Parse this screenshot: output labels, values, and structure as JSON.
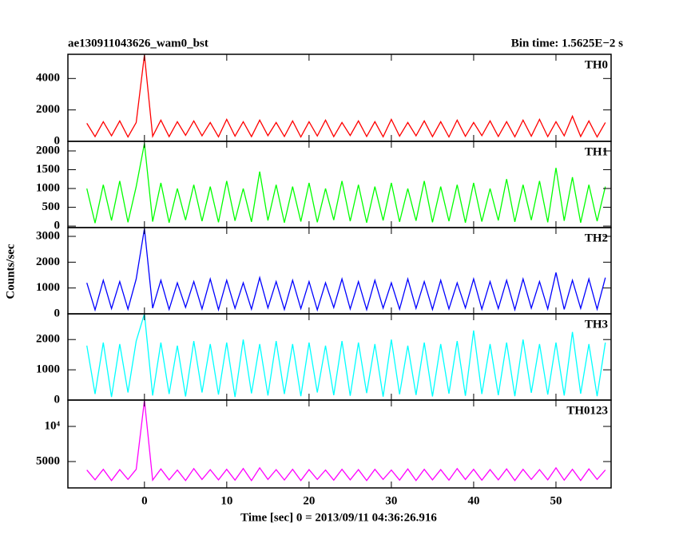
{
  "chart_data": {
    "type": "line",
    "title": "ae130911043626_wam0_bst",
    "subtitle": "Bin time: 1.5625E−2 s",
    "xlabel": "Time [sec] 0 = 2013/09/11 04:36:26.916",
    "ylabel": "Counts/sec",
    "xlim": [
      -9.3,
      56.7
    ],
    "xticks": [
      0,
      10,
      20,
      30,
      40,
      50
    ],
    "x": [
      -7,
      -6,
      -5,
      -4,
      -3,
      -2,
      -1,
      0,
      1,
      2,
      3,
      4,
      5,
      6,
      7,
      8,
      9,
      10,
      11,
      12,
      13,
      14,
      15,
      16,
      17,
      18,
      19,
      20,
      21,
      22,
      23,
      24,
      25,
      26,
      27,
      28,
      29,
      30,
      31,
      32,
      33,
      34,
      35,
      36,
      37,
      38,
      39,
      40,
      41,
      42,
      43,
      44,
      45,
      46,
      47,
      48,
      49,
      50,
      51,
      52,
      53,
      54,
      55,
      56
    ],
    "series": [
      {
        "name": "TH0",
        "color": "#ff0000",
        "ylim": [
          0,
          5540
        ],
        "yticks": [
          0,
          2000,
          4000
        ],
        "values": [
          1150,
          300,
          1250,
          350,
          1300,
          280,
          1200,
          5500,
          320,
          1350,
          300,
          1250,
          380,
          1300,
          350,
          1200,
          290,
          1400,
          330,
          1250,
          300,
          1350,
          360,
          1200,
          310,
          1300,
          280,
          1250,
          340,
          1350,
          300,
          1200,
          370,
          1300,
          310,
          1250,
          290,
          1400,
          330,
          1200,
          350,
          1300,
          300,
          1250,
          280,
          1350,
          320,
          1200,
          360,
          1300,
          310,
          1250,
          290,
          1350,
          330,
          1400,
          300,
          1250,
          350,
          1600,
          310,
          1300,
          280,
          1200
        ]
      },
      {
        "name": "TH1",
        "color": "#00ff00",
        "ylim": [
          -40,
          2255
        ],
        "yticks": [
          0,
          500,
          1000,
          1500,
          2000
        ],
        "values": [
          1000,
          80,
          1100,
          150,
          1200,
          100,
          1050,
          2200,
          120,
          1150,
          90,
          1000,
          160,
          1100,
          130,
          1050,
          100,
          1200,
          140,
          1000,
          110,
          1450,
          150,
          1100,
          90,
          1050,
          120,
          1150,
          100,
          1000,
          160,
          1200,
          130,
          1100,
          90,
          1050,
          150,
          1150,
          110,
          1000,
          140,
          1200,
          100,
          1050,
          130,
          1100,
          90,
          1150,
          120,
          1000,
          150,
          1250,
          110,
          1100,
          160,
          1200,
          100,
          1550,
          140,
          1300,
          90,
          1100,
          130,
          1050
        ]
      },
      {
        "name": "TH2",
        "color": "#0000ff",
        "ylim": [
          0,
          3340
        ],
        "yticks": [
          0,
          1000,
          2000,
          3000
        ],
        "values": [
          1200,
          150,
          1300,
          200,
          1250,
          180,
          1350,
          3300,
          220,
          1300,
          170,
          1200,
          250,
          1250,
          190,
          1350,
          160,
          1300,
          210,
          1200,
          180,
          1400,
          230,
          1250,
          170,
          1300,
          200,
          1250,
          150,
          1200,
          240,
          1350,
          190,
          1250,
          160,
          1300,
          220,
          1200,
          180,
          1350,
          210,
          1250,
          170,
          1300,
          190,
          1200,
          230,
          1350,
          180,
          1250,
          200,
          1300,
          160,
          1350,
          220,
          1250,
          190,
          1600,
          170,
          1300,
          210,
          1350,
          180,
          1400
        ]
      },
      {
        "name": "TH3",
        "color": "#00ffff",
        "ylim": [
          0,
          2850
        ],
        "yticks": [
          0,
          1000,
          2000
        ],
        "values": [
          1800,
          200,
          1900,
          100,
          1850,
          250,
          1950,
          2850,
          150,
          1900,
          200,
          1800,
          120,
          1950,
          250,
          1850,
          180,
          1900,
          100,
          2000,
          220,
          1850,
          150,
          1950,
          200,
          1850,
          130,
          1900,
          250,
          1800,
          160,
          1950,
          140,
          1900,
          230,
          1850,
          110,
          2000,
          190,
          1800,
          170,
          1900,
          120,
          1850,
          210,
          1950,
          140,
          2300,
          200,
          1850,
          160,
          1900,
          130,
          2000,
          240,
          1850,
          180,
          1900,
          150,
          2250,
          210,
          1850,
          130,
          1900
        ]
      },
      {
        "name": "TH0123",
        "color": "#ff00ff",
        "ylim": [
          1250,
          13750
        ],
        "yticks": [
          5000,
          {
            "value": 10000,
            "label": "10⁴"
          }
        ],
        "values": [
          3800,
          2400,
          3900,
          2300,
          3850,
          2450,
          3900,
          13700,
          2350,
          3950,
          2400,
          3800,
          2300,
          4000,
          2450,
          3850,
          2400,
          3900,
          2350,
          4000,
          2300,
          4100,
          2450,
          3850,
          2380,
          3900,
          2300,
          3850,
          2450,
          3800,
          2350,
          3900,
          2400,
          3850,
          2300,
          3900,
          2450,
          3800,
          2350,
          3950,
          2300,
          3900,
          2400,
          3850,
          2350,
          4000,
          2450,
          3900,
          2350,
          3850,
          2400,
          3950,
          2300,
          3900,
          2450,
          3850,
          2400,
          4100,
          2350,
          3900,
          2300,
          3950,
          2450,
          3800
        ]
      }
    ]
  }
}
